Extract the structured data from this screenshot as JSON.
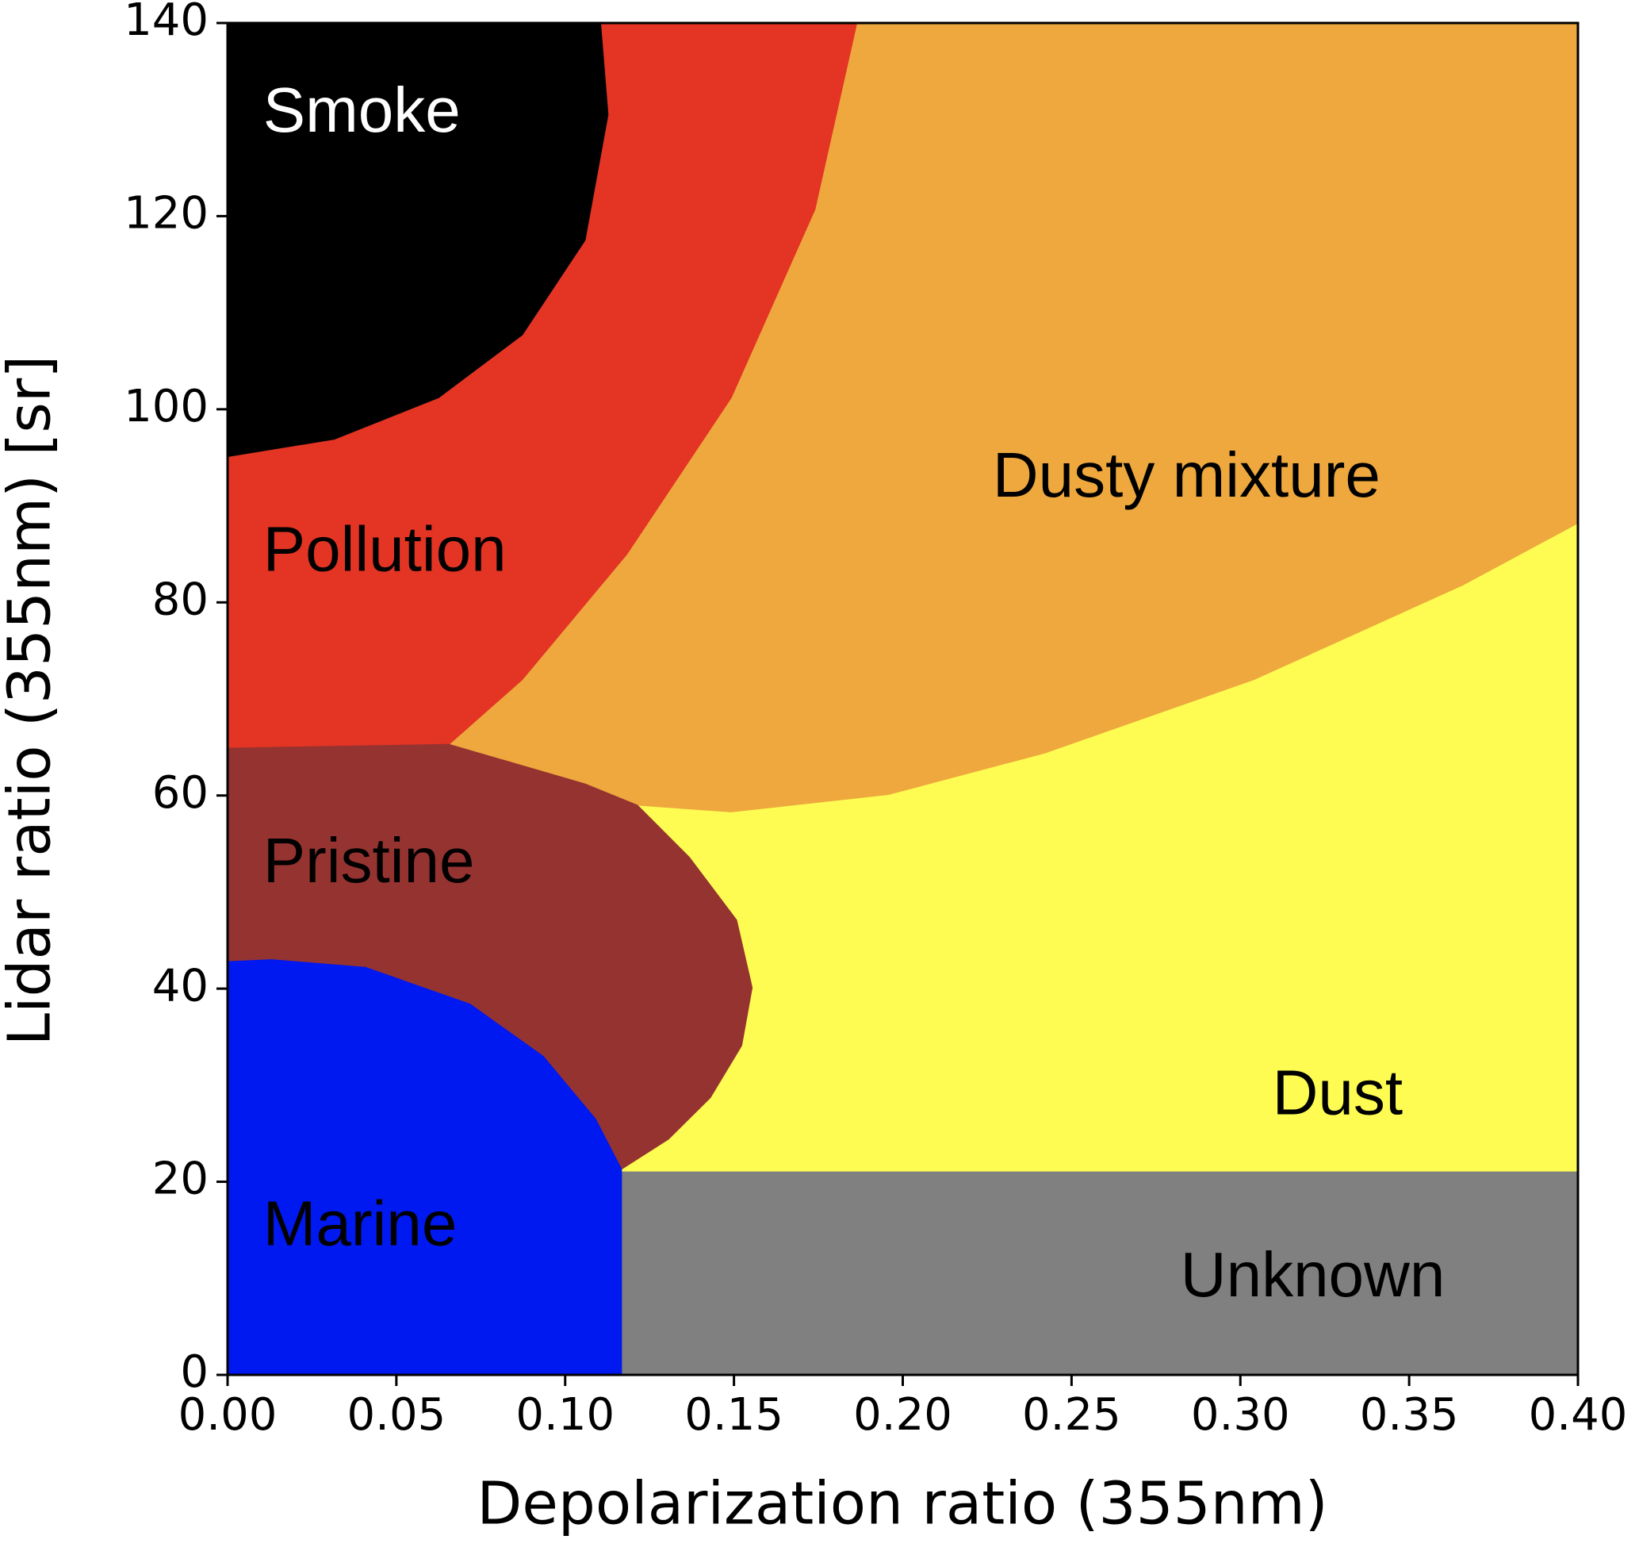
{
  "chart_data": {
    "type": "regions",
    "xlabel": "Depolarization ratio (355nm)",
    "ylabel": "Lidar ratio (355nm) [sr]",
    "xlim": [
      0,
      0.4
    ],
    "ylim": [
      0,
      140
    ],
    "xticks": [
      {
        "value": 0,
        "label": "0.00"
      },
      {
        "value": 0.05,
        "label": "0.05"
      },
      {
        "value": 0.1,
        "label": "0.10"
      },
      {
        "value": 0.15,
        "label": "0.15"
      },
      {
        "value": 0.2,
        "label": "0.20"
      },
      {
        "value": 0.25,
        "label": "0.25"
      },
      {
        "value": 0.3,
        "label": "0.30"
      },
      {
        "value": 0.35,
        "label": "0.35"
      },
      {
        "value": 0.4,
        "label": "0.40"
      }
    ],
    "yticks": [
      0,
      20,
      40,
      60,
      80,
      100,
      120,
      140
    ],
    "regions": [
      {
        "name": "Unknown",
        "color": "#808080",
        "label_color": "#000000",
        "x": [
          0.1167,
          0.4,
          0.4,
          0.1167
        ],
        "y": [
          0,
          0,
          21.1,
          21.1
        ]
      },
      {
        "name": "Dust",
        "color": "#fefc52",
        "label_color": "#000000",
        "x": [
          0.1167,
          0.4,
          0.4,
          0.3659,
          0.304,
          0.2421,
          0.1957,
          0.1492,
          0.1214,
          0.1368,
          0.1508,
          0.1554,
          0.1523,
          0.143,
          0.1306,
          0.1167
        ],
        "y": [
          21.1,
          21.1,
          88.2,
          81.8,
          72.0,
          64.4,
          60.1,
          58.3,
          59.0,
          53.6,
          47.1,
          40.1,
          34.1,
          28.7,
          24.4,
          21.3
        ]
      },
      {
        "name": "Dusty mixture",
        "color": "#eea83e",
        "label_color": "#000000",
        "x": [
          0.1864,
          0.4,
          0.4,
          0.3659,
          0.304,
          0.2421,
          0.1957,
          0.1492,
          0.1214,
          0.1059,
          0.0656,
          0.0873,
          0.1183,
          0.1492,
          0.174
        ],
        "y": [
          140,
          140,
          88.2,
          81.8,
          72.0,
          64.4,
          60.1,
          58.3,
          59.0,
          61.2,
          65.3,
          72.0,
          85.0,
          101.2,
          120.7
        ]
      },
      {
        "name": "Pollution",
        "color": "#e33424",
        "label_color": "#000000",
        "x": [
          0,
          0.0316,
          0.0625,
          0.0873,
          0.1059,
          0.1127,
          0.1105,
          0.1864,
          0.174,
          0.1492,
          0.1183,
          0.0873,
          0.0656,
          0
        ],
        "y": [
          95.1,
          96.9,
          101.2,
          107.7,
          117.5,
          130.5,
          140,
          140,
          120.7,
          101.2,
          85.0,
          72.0,
          65.3,
          64.9
        ]
      },
      {
        "name": "Smoke",
        "color": "#000000",
        "label_color": "#ffffff",
        "x": [
          0,
          0.1105,
          0.1127,
          0.1059,
          0.0873,
          0.0625,
          0.0316,
          0
        ],
        "y": [
          140,
          140,
          130.5,
          117.5,
          107.7,
          101.2,
          96.9,
          95.1
        ]
      },
      {
        "name": "Pristine",
        "color": "#953331",
        "label_color": "#000000",
        "x": [
          0,
          0.0656,
          0.1059,
          0.1214,
          0.1368,
          0.1508,
          0.1554,
          0.1523,
          0.143,
          0.1306,
          0.1167,
          0.109,
          0.0935,
          0.0718,
          0.0409,
          0.013,
          0
        ],
        "y": [
          64.9,
          65.3,
          61.2,
          59.0,
          53.6,
          47.1,
          40.1,
          34.1,
          28.7,
          24.4,
          21.3,
          26.5,
          33.0,
          38.4,
          42.2,
          43.0,
          42.8
        ]
      },
      {
        "name": "Marine",
        "color": "#0019f0",
        "label_color": "#000000",
        "x": [
          0,
          0.1167,
          0.1167,
          0.109,
          0.0935,
          0.0718,
          0.0409,
          0.013,
          0
        ],
        "y": [
          0,
          0,
          21.3,
          26.5,
          33.0,
          38.4,
          42.2,
          43.0,
          42.8
        ]
      }
    ]
  }
}
